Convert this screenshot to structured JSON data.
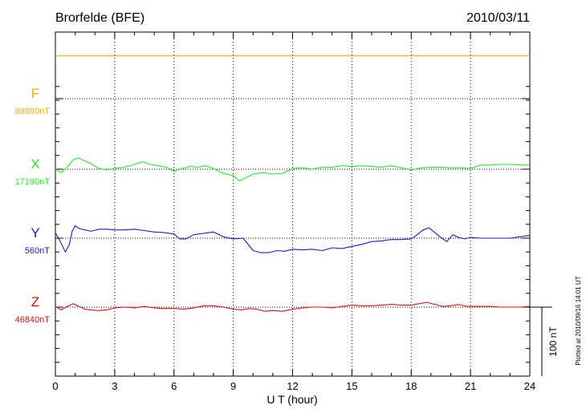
{
  "chart_data": {
    "type": "line",
    "title": "Brorfelde (BFE)",
    "date": "2010/03/11",
    "xlabel": "U T (hour)",
    "xlim": [
      0,
      24
    ],
    "xticks": [
      0,
      3,
      6,
      9,
      12,
      15,
      18,
      21,
      24
    ],
    "scale_bar_label": "100 nT",
    "plotted_note": "Plotted at 2010/09/16 14:01 UT",
    "grid": true,
    "series": [
      {
        "name": "F",
        "baseline_label": "88880nT",
        "color": "#f2b000",
        "offset_nT": 62,
        "x": [
          0,
          24
        ],
        "y": [
          0,
          0
        ]
      },
      {
        "name": "X",
        "baseline_label": "17190nT",
        "color": "#22ee22",
        "offset_nT": 0,
        "x": [
          0,
          0.3,
          0.6,
          0.9,
          1.2,
          1.5,
          1.8,
          2.2,
          2.6,
          3.0,
          3.5,
          4.0,
          4.4,
          4.8,
          5.2,
          5.6,
          6.0,
          6.4,
          6.8,
          7.2,
          7.6,
          8.0,
          8.5,
          9.0,
          9.3,
          9.6,
          10.0,
          10.5,
          11.0,
          11.5,
          12.0,
          12.5,
          13.0,
          13.5,
          14.0,
          14.5,
          15.0,
          15.5,
          16.0,
          16.5,
          17.0,
          17.5,
          18.0,
          18.5,
          19.0,
          19.5,
          20.0,
          20.5,
          21.0,
          21.5,
          22.0,
          22.5,
          23.0,
          23.5,
          24.0
        ],
        "y": [
          0,
          -5,
          3,
          14,
          16,
          12,
          8,
          1,
          -1,
          1,
          3,
          7,
          11,
          7,
          5,
          3,
          -3,
          1,
          4,
          3,
          5,
          1,
          -6,
          -9,
          -17,
          -13,
          -7,
          -5,
          -7,
          -6,
          1,
          2,
          0,
          3,
          3,
          5,
          4,
          5,
          4,
          3,
          5,
          2,
          -1,
          2,
          3,
          3,
          2,
          2,
          1,
          6,
          6,
          7,
          7,
          6,
          6
        ]
      },
      {
        "name": "Y",
        "baseline_label": "560nT",
        "color": "#1a1ad6",
        "offset_nT": 0,
        "x": [
          0,
          0.25,
          0.5,
          0.7,
          0.85,
          1.0,
          1.2,
          1.5,
          1.8,
          2.2,
          2.6,
          3.0,
          3.5,
          4.0,
          4.5,
          5.0,
          5.5,
          6.0,
          6.3,
          6.6,
          7.0,
          7.5,
          8.0,
          8.5,
          9.0,
          9.5,
          10.0,
          10.4,
          10.8,
          11.2,
          11.6,
          12.0,
          12.5,
          13.0,
          13.5,
          14.0,
          14.5,
          15.0,
          15.5,
          16.0,
          16.5,
          17.0,
          17.5,
          18.0,
          18.3,
          18.6,
          18.9,
          19.2,
          19.5,
          19.8,
          20.1,
          20.4,
          20.7,
          21.0,
          21.5,
          22.0,
          22.5,
          23.0,
          23.5,
          24.0
        ],
        "y": [
          8,
          -5,
          -20,
          -10,
          10,
          18,
          14,
          12,
          10,
          13,
          13,
          12,
          12,
          13,
          11,
          9,
          8,
          6,
          -1,
          -1,
          5,
          7,
          9,
          2,
          -1,
          0,
          -18,
          -21,
          -21,
          -18,
          -19,
          -16,
          -17,
          -16,
          -18,
          -14,
          -15,
          -12,
          -9,
          -5,
          -4,
          -2,
          -2,
          -1,
          5,
          12,
          15,
          8,
          1,
          -5,
          5,
          1,
          -1,
          1,
          0,
          0,
          0,
          0,
          2,
          4
        ]
      },
      {
        "name": "Z",
        "baseline_label": "46840nT",
        "color": "#dd1111",
        "offset_nT": 0,
        "x": [
          0,
          0.3,
          0.6,
          0.9,
          1.2,
          1.5,
          1.8,
          2.2,
          2.6,
          3.0,
          3.5,
          4.0,
          4.5,
          5.0,
          5.5,
          6.0,
          6.5,
          7.0,
          7.5,
          8.0,
          8.5,
          9.0,
          9.4,
          9.8,
          10.2,
          10.6,
          11.0,
          11.5,
          12.0,
          12.5,
          13.0,
          13.5,
          14.0,
          14.5,
          15.0,
          15.5,
          16.0,
          16.5,
          17.0,
          17.5,
          18.0,
          18.4,
          18.8,
          19.2,
          19.6,
          20.0,
          20.4,
          20.8,
          21.2,
          21.6,
          22.0,
          22.5,
          23.0,
          23.5,
          24.0
        ],
        "y": [
          1,
          -4,
          1,
          5,
          1,
          -3,
          -4,
          -5,
          -4,
          -1,
          0,
          -1,
          1,
          -1,
          -2,
          -2,
          -3,
          -1,
          2,
          2,
          0,
          -3,
          -4,
          -2,
          -3,
          -6,
          -5,
          -6,
          -3,
          -1,
          0,
          0,
          -1,
          1,
          3,
          2,
          2,
          3,
          4,
          3,
          3,
          5,
          7,
          4,
          1,
          2,
          4,
          1,
          1,
          1,
          1,
          0,
          0,
          0,
          1
        ]
      }
    ]
  }
}
